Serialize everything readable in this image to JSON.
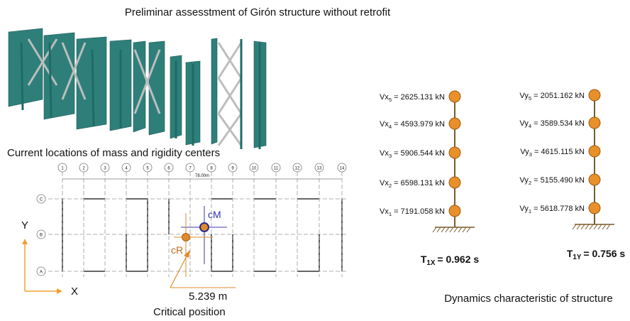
{
  "title": "Preliminar assesstment of  Girón structure without retrofit",
  "plan": {
    "title": "Current locations of mass and rigidity centers",
    "columns": [
      "1",
      "2",
      "3",
      "4",
      "5",
      "6",
      "7",
      "8",
      "9",
      "10",
      "11",
      "12",
      "13",
      "14"
    ],
    "rows": [
      "C",
      "B",
      "A"
    ],
    "dimension": "78.00m",
    "axis_y": "Y",
    "axis_x": "X",
    "mass_center": "cM",
    "rigidity_center": "cR",
    "eccentricity": "5.239 m",
    "critical_position": "Critical position"
  },
  "dynamics": {
    "x_direction": {
      "shears": [
        {
          "name": "Vx",
          "sub": "5",
          "value": "= 2625.131 kN"
        },
        {
          "name": "Vx",
          "sub": "4",
          "value": "= 4593.979 kN"
        },
        {
          "name": "Vx",
          "sub": "3",
          "value": "= 5906.544 kN"
        },
        {
          "name": "Vx",
          "sub": "2",
          "value": "= 6598.131 kN"
        },
        {
          "name": "Vx",
          "sub": "1",
          "value": "= 7191.058 kN"
        }
      ],
      "period": {
        "name": "T",
        "sub": "1X",
        "value": "= 0.962 s"
      }
    },
    "y_direction": {
      "shears": [
        {
          "name": "Vy",
          "sub": "5",
          "value": "= 2051.162  kN"
        },
        {
          "name": "Vy",
          "sub": "4",
          "value": "= 3589.534  kN"
        },
        {
          "name": "Vy",
          "sub": "3",
          "value": "= 4615.115  kN"
        },
        {
          "name": "Vy",
          "sub": "2",
          "value": "= 5155.490  kN"
        },
        {
          "name": "Vy",
          "sub": "1",
          "value": "= 5618.778  kN"
        }
      ],
      "period": {
        "name": "T",
        "sub": "1Y",
        "value": "= 0.756 s"
      }
    },
    "caption": "Dynamics characteristic of structure"
  }
}
